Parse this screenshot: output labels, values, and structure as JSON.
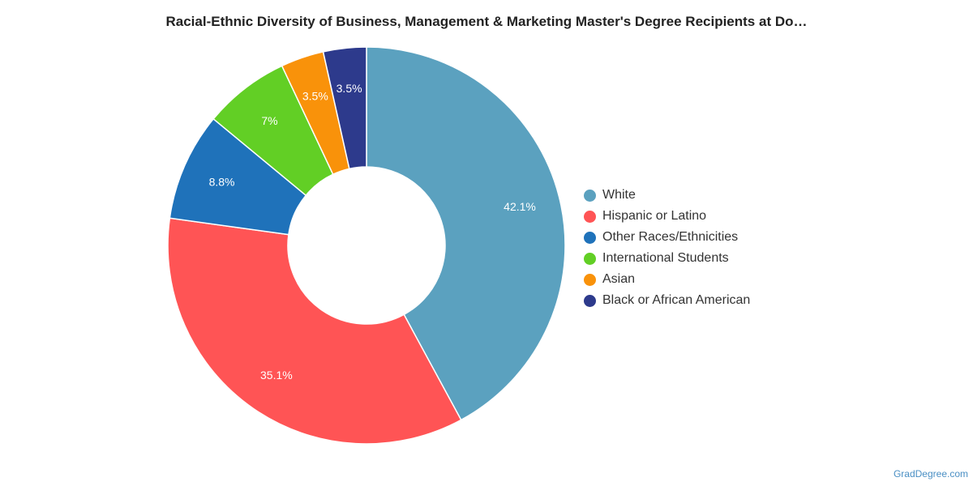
{
  "title": "Racial-Ethnic Diversity of Business, Management & Marketing Master's Degree Recipients at Do…",
  "credit": "GradDegree.com",
  "chart_data": {
    "type": "pie",
    "variant": "donut",
    "title": "Racial-Ethnic Diversity of Business, Management & Marketing Master's Degree Recipients at Do…",
    "legend_position": "right",
    "slices": [
      {
        "name": "White",
        "value": 42.1,
        "label": "42.1%",
        "color": "#5ba1bf"
      },
      {
        "name": "Hispanic or Latino",
        "value": 35.1,
        "label": "35.1%",
        "color": "#ff5455"
      },
      {
        "name": "Other Races/Ethnicities",
        "value": 8.8,
        "label": "8.8%",
        "color": "#1f72ba"
      },
      {
        "name": "International Students",
        "value": 7.0,
        "label": "7%",
        "color": "#62cf25"
      },
      {
        "name": "Asian",
        "value": 3.5,
        "label": "3.5%",
        "color": "#f9920a"
      },
      {
        "name": "Black or African American",
        "value": 3.5,
        "label": "3.5%",
        "color": "#2d3a8c"
      }
    ]
  }
}
